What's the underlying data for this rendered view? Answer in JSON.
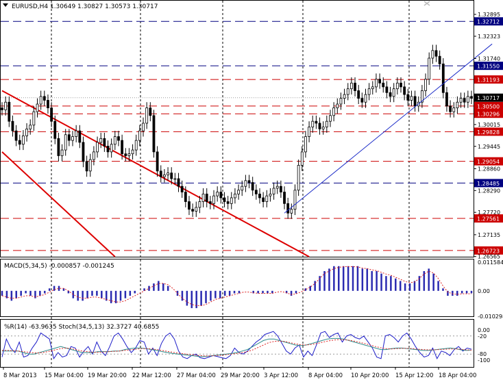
{
  "colors": {
    "background": "#ffffff",
    "frame": "#000000",
    "grid": "#000000",
    "candle_body": "#000000",
    "bear_body": "#000000",
    "bull_body": "#ffffff",
    "level_red": "#cc0000",
    "level_blue": "#000080",
    "channel_red": "#dd0000",
    "trendline_blue": "#1c2cc8",
    "macd_hist": "#2a2ab0",
    "macd_signal": "#dd2020",
    "wpr_line": "#1c1cc8",
    "stoch_main": "#2a8a8a",
    "stoch_signal": "#dd2020",
    "label_red_bg": "#cc0000",
    "label_blue_bg": "#000080",
    "label_text": "#ffffff",
    "last_price_bg": "#000000"
  },
  "chart_data": [
    {
      "type": "candlestick",
      "title": "EURUSD,H4  1.30649 1.30827 1.30573 1.30717",
      "symbol_icon": "triangle-down-icon",
      "x_tick_labels": [
        "8 Mar 2013",
        "15 Mar 04:00",
        "19 Mar 20:00",
        "22 Mar 12:00",
        "27 Mar 04:00",
        "29 Mar 20:00",
        "3 Apr 12:00",
        "8 Apr 04:00",
        "10 Apr 20:00",
        "15 Apr 12:00",
        "18 Apr 04:00"
      ],
      "y_tick_labels": [
        "1.32895",
        "1.32323",
        "1.31740",
        "1.30015",
        "1.29445",
        "1.28860",
        "1.28290",
        "1.27720",
        "1.27135",
        "1.26565"
      ],
      "ylim": [
        1.2656,
        1.3302
      ],
      "current_price": "1.30717",
      "horizontal_levels": [
        {
          "value": 1.32712,
          "label": "1.32712",
          "color": "blue"
        },
        {
          "value": 1.3155,
          "label": "1.31550",
          "color": "blue"
        },
        {
          "value": 1.31193,
          "label": "1.31193",
          "color": "red"
        },
        {
          "value": 1.305,
          "label": "1.30500",
          "color": "red"
        },
        {
          "value": 1.30296,
          "label": "1.30296",
          "color": "red"
        },
        {
          "value": 1.29828,
          "label": "1.29828",
          "color": "red"
        },
        {
          "value": 1.29054,
          "label": "1.29054",
          "color": "red"
        },
        {
          "value": 1.28485,
          "label": "1.28485",
          "color": "blue"
        },
        {
          "value": 1.27561,
          "label": "1.27561",
          "color": "red"
        },
        {
          "value": 1.26723,
          "label": "1.26723",
          "color": "red"
        }
      ],
      "close_series": [
        1.304,
        1.306,
        1.301,
        1.2985,
        1.296,
        1.295,
        1.2972,
        1.299,
        1.3,
        1.3035,
        1.3055,
        1.3075,
        1.3065,
        1.3045,
        1.301,
        1.2965,
        1.292,
        1.2935,
        1.2975,
        1.296,
        1.297,
        1.2985,
        1.2955,
        1.2905,
        1.288,
        1.291,
        1.293,
        1.2955,
        1.2965,
        1.2945,
        1.293,
        1.295,
        1.297,
        1.296,
        1.2925,
        1.292,
        1.2925,
        1.2935,
        1.296,
        1.2985,
        1.3005,
        1.3045,
        1.3025,
        1.293,
        1.288,
        1.2865,
        1.287,
        1.2875,
        1.286,
        1.286,
        1.284,
        1.2825,
        1.28,
        1.278,
        1.2775,
        1.2785,
        1.28,
        1.282,
        1.28,
        1.2795,
        1.2815,
        1.2825,
        1.281,
        1.28,
        1.2795,
        1.281,
        1.282,
        1.283,
        1.284,
        1.2855,
        1.285,
        1.283,
        1.282,
        1.281,
        1.28,
        1.2815,
        1.282,
        1.2835,
        1.284,
        1.2825,
        1.2795,
        1.277,
        1.278,
        1.283,
        1.2895,
        1.293,
        1.297,
        1.2995,
        1.301,
        1.3005,
        1.299,
        1.2995,
        1.301,
        1.3025,
        1.3045,
        1.3055,
        1.307,
        1.308,
        1.3095,
        1.311,
        1.309,
        1.307,
        1.306,
        1.308,
        1.3095,
        1.31,
        1.312,
        1.311,
        1.31,
        1.3085,
        1.3075,
        1.3095,
        1.311,
        1.31,
        1.308,
        1.3065,
        1.3075,
        1.305,
        1.306,
        1.309,
        1.312,
        1.3175,
        1.3195,
        1.318,
        1.316,
        1.3085,
        1.305,
        1.3035,
        1.3045,
        1.306,
        1.307,
        1.306,
        1.3075,
        1.307
      ],
      "channel_lines": [
        {
          "from": [
            0,
            1.309
          ],
          "to": [
            87,
            1.2656
          ],
          "color": "red"
        },
        {
          "from": [
            0,
            1.293
          ],
          "to": [
            32,
            1.2656
          ],
          "color": "red"
        }
      ],
      "trend_line": {
        "from": [
          80,
          1.277
        ],
        "to": [
          134,
          1.318
        ]
      }
    },
    {
      "type": "bar",
      "title": "MACD(5,34,5) -0.000857 -0.001245",
      "y_tick_labels": [
        "0.011584",
        "0.00",
        "-0.010298"
      ],
      "ylim": [
        -0.0103,
        0.0116
      ],
      "histogram": [
        -0.002,
        -0.003,
        -0.004,
        -0.003,
        -0.002,
        -0.001,
        -0.002,
        -0.003,
        -0.002,
        -0.001,
        0.001,
        0.002,
        0.002,
        0.001,
        -0.001,
        -0.003,
        -0.004,
        -0.004,
        -0.003,
        -0.002,
        -0.002,
        -0.003,
        -0.004,
        -0.005,
        -0.005,
        -0.004,
        -0.003,
        -0.002,
        -0.001,
        0.0,
        0.001,
        0.002,
        0.003,
        0.004,
        0.003,
        0.002,
        0.0,
        -0.002,
        -0.004,
        -0.006,
        -0.007,
        -0.007,
        -0.006,
        -0.005,
        -0.004,
        -0.003,
        -0.003,
        -0.002,
        -0.002,
        -0.001,
        -0.001,
        0.0,
        0.0,
        -0.001,
        -0.001,
        -0.001,
        -0.001,
        -0.001,
        0.0,
        0.0,
        -0.001,
        -0.002,
        -0.001,
        0.0,
        0.001,
        0.002,
        0.004,
        0.006,
        0.008,
        0.009,
        0.01,
        0.01,
        0.01,
        0.01,
        0.01,
        0.01,
        0.009,
        0.009,
        0.008,
        0.008,
        0.007,
        0.006,
        0.006,
        0.005,
        0.004,
        0.003,
        0.003,
        0.004,
        0.006,
        0.008,
        0.009,
        0.007,
        0.004,
        0.001,
        -0.002,
        -0.002,
        -0.002,
        -0.001,
        -0.001,
        -0.001
      ],
      "signal": [
        -0.002,
        -0.0025,
        -0.003,
        -0.003,
        -0.0025,
        -0.002,
        -0.002,
        -0.0025,
        -0.002,
        -0.0015,
        -0.0005,
        0.0005,
        0.001,
        0.001,
        0.0,
        -0.0015,
        -0.0025,
        -0.003,
        -0.003,
        -0.0025,
        -0.0025,
        -0.003,
        -0.0035,
        -0.004,
        -0.0045,
        -0.0045,
        -0.004,
        -0.003,
        -0.002,
        -0.001,
        0.0,
        0.001,
        0.002,
        0.003,
        0.003,
        0.0025,
        0.001,
        -0.001,
        -0.003,
        -0.0045,
        -0.0055,
        -0.006,
        -0.006,
        -0.0055,
        -0.0045,
        -0.0035,
        -0.003,
        -0.0025,
        -0.002,
        -0.0015,
        -0.001,
        -0.0005,
        -0.0005,
        -0.0008,
        -0.001,
        -0.001,
        -0.001,
        -0.001,
        -0.0005,
        -0.0003,
        -0.0008,
        -0.0015,
        -0.0012,
        -0.0005,
        0.0005,
        0.0015,
        0.003,
        0.005,
        0.007,
        0.008,
        0.009,
        0.0095,
        0.0098,
        0.0098,
        0.0098,
        0.0097,
        0.0092,
        0.009,
        0.0085,
        0.0082,
        0.0075,
        0.0068,
        0.0063,
        0.0055,
        0.0047,
        0.0038,
        0.0033,
        0.0036,
        0.005,
        0.0068,
        0.008,
        0.0072,
        0.005,
        0.002,
        -0.0005,
        -0.0012,
        -0.0014,
        -0.0012,
        -0.0012,
        -0.0012
      ]
    },
    {
      "type": "line",
      "title": "%R(14) -63.9635  Stoch(34,5,13) 32.3727 40.6855",
      "y_tick_labels": [
        "0.00",
        "-20",
        "-80",
        "-100"
      ],
      "ylim": [
        -100,
        0
      ],
      "series": [
        {
          "name": "%R(14)",
          "values": [
            -90,
            -30,
            -60,
            -75,
            -40,
            -90,
            -85,
            -60,
            -40,
            -10,
            -20,
            -30,
            -95,
            -75,
            -90,
            -85,
            -55,
            -60,
            -90,
            -70,
            -55,
            -80,
            -40,
            -70,
            -85,
            -55,
            -20,
            -10,
            -30,
            -55,
            -75,
            -60,
            -35,
            -40,
            -80,
            -60,
            -85,
            -45,
            -20,
            -10,
            -30,
            -70,
            -90,
            -95,
            -85,
            -80,
            -92,
            -95,
            -90,
            -85,
            -88,
            -92,
            -95,
            -85,
            -60,
            -75,
            -80,
            -70,
            -55,
            -40,
            -30,
            -15,
            -10,
            -5,
            -20,
            -45,
            -70,
            -80,
            -60,
            -50,
            -90,
            -70,
            -85,
            -50,
            -10,
            -5,
            -25,
            -15,
            -10,
            -40,
            -20,
            -15,
            -25,
            -30,
            -20,
            -40,
            -60,
            -90,
            -95,
            -20,
            -15,
            -25,
            -40,
            -20,
            -10,
            -30,
            -55,
            -75,
            -90,
            -85,
            -60,
            -95,
            -70,
            -75,
            -85,
            -65,
            -55,
            -70,
            -60,
            -64
          ]
        },
        {
          "name": "Stoch",
          "values": [
            -70,
            -70,
            -70,
            -70,
            -75,
            -80,
            -80,
            -75,
            -70,
            -65,
            -60,
            -55,
            -60,
            -65,
            -70,
            -75,
            -75,
            -75,
            -72,
            -72,
            -72,
            -70,
            -70,
            -65,
            -62,
            -60,
            -60,
            -62,
            -65,
            -68,
            -72,
            -75,
            -78,
            -80,
            -82,
            -84,
            -86,
            -88,
            -88,
            -86,
            -84,
            -82,
            -80,
            -78,
            -75,
            -70,
            -65,
            -55,
            -45,
            -35,
            -30,
            -30,
            -35,
            -40,
            -45,
            -50,
            -52,
            -50,
            -45,
            -40,
            -35,
            -30,
            -28,
            -28,
            -30,
            -35,
            -40,
            -45,
            -50,
            -55,
            -60,
            -65,
            -65,
            -62,
            -60,
            -60,
            -62,
            -64,
            -66,
            -68,
            -68,
            -66,
            -64,
            -62,
            -60,
            -62,
            -66,
            -68,
            -67
          ]
        },
        {
          "name": "Signal",
          "values": [
            -68,
            -68,
            -69,
            -70,
            -72,
            -74,
            -76,
            -76,
            -74,
            -70,
            -66,
            -62,
            -60,
            -62,
            -66,
            -70,
            -72,
            -74,
            -74,
            -73,
            -72,
            -71,
            -70,
            -68,
            -66,
            -64,
            -62,
            -62,
            -63,
            -65,
            -68,
            -71,
            -74,
            -77,
            -79,
            -81,
            -83,
            -85,
            -86,
            -86,
            -85,
            -84,
            -82,
            -80,
            -78,
            -75,
            -72,
            -66,
            -58,
            -50,
            -42,
            -38,
            -37,
            -38,
            -42,
            -46,
            -49,
            -50,
            -48,
            -45,
            -41,
            -37,
            -34,
            -32,
            -32,
            -34,
            -37,
            -41,
            -45,
            -50,
            -55,
            -59,
            -62,
            -63,
            -62,
            -61,
            -61,
            -62,
            -64,
            -65,
            -66,
            -66,
            -65,
            -64,
            -63,
            -63,
            -64,
            -66,
            -67
          ]
        }
      ]
    }
  ]
}
